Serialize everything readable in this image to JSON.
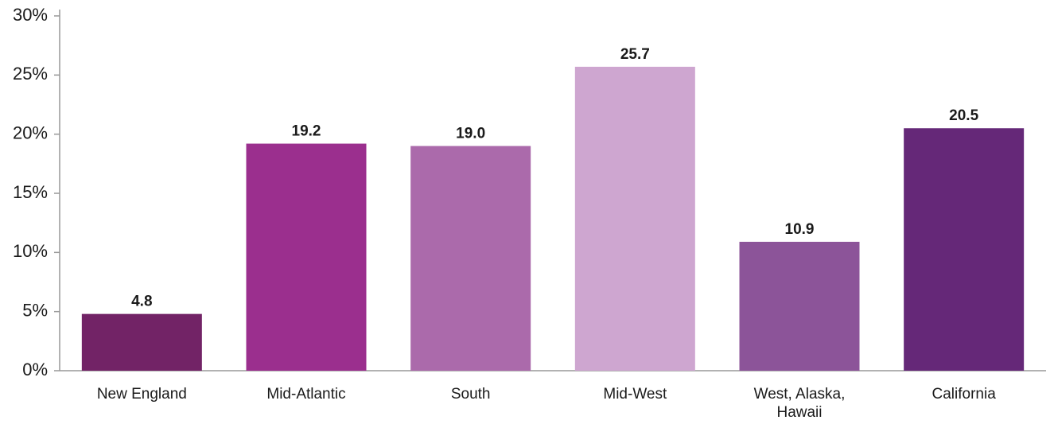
{
  "chart_data": {
    "type": "bar",
    "categories": [
      "New England",
      "Mid-Atlantic",
      "South",
      "Mid-West",
      "West, Alaska, Hawaii",
      "California"
    ],
    "values": [
      4.8,
      19.2,
      19.0,
      25.7,
      10.9,
      20.5
    ],
    "value_labels": [
      "4.8",
      "19.2",
      "19.0",
      "25.7",
      "10.9",
      "20.5"
    ],
    "colors": [
      "#722366",
      "#9b2f8e",
      "#ab6aab",
      "#cea6d0",
      "#8c5499",
      "#652878"
    ],
    "ylim": [
      0,
      30
    ],
    "yticks": [
      {
        "value": 0,
        "label": "0%"
      },
      {
        "value": 5,
        "label": "5%"
      },
      {
        "value": 10,
        "label": "10%"
      },
      {
        "value": 15,
        "label": "15%"
      },
      {
        "value": 20,
        "label": "20%"
      },
      {
        "value": 25,
        "label": "25%"
      },
      {
        "value": 30,
        "label": "30%"
      }
    ],
    "grid": false
  }
}
